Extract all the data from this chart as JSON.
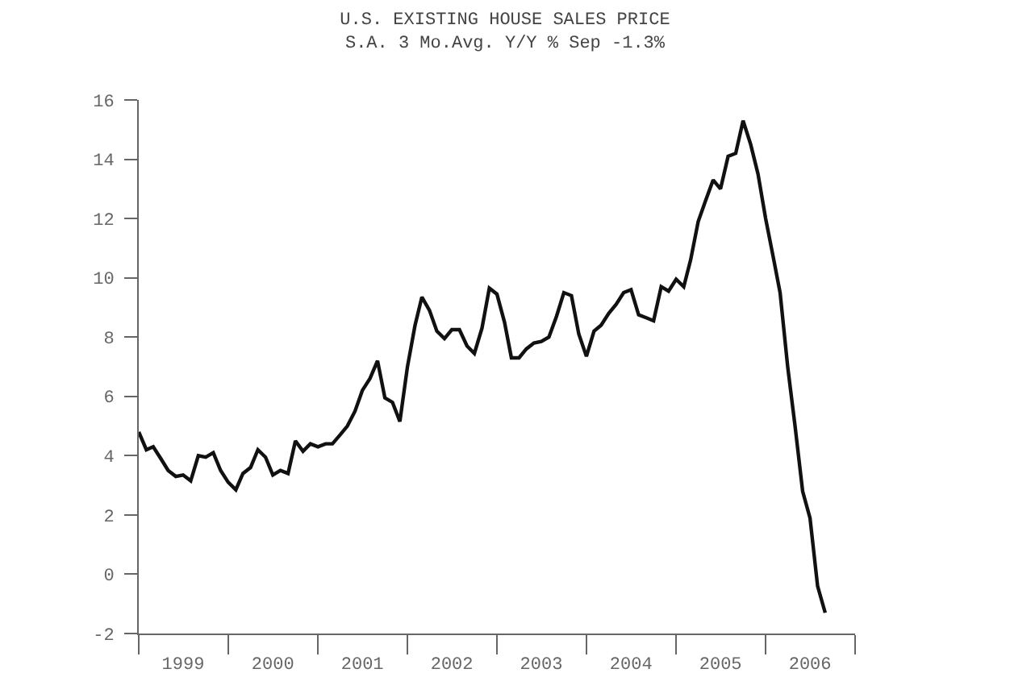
{
  "chart_data": {
    "type": "line",
    "title": "U.S. EXISTING HOUSE SALES PRICE",
    "subtitle": "S.A. 3 Mo.Avg. Y/Y % Sep -1.3%",
    "x": [
      "1999-01",
      "1999-02",
      "1999-03",
      "1999-04",
      "1999-05",
      "1999-06",
      "1999-07",
      "1999-08",
      "1999-09",
      "1999-10",
      "1999-11",
      "1999-12",
      "2000-01",
      "2000-02",
      "2000-03",
      "2000-04",
      "2000-05",
      "2000-06",
      "2000-07",
      "2000-08",
      "2000-09",
      "2000-10",
      "2000-11",
      "2000-12",
      "2001-01",
      "2001-02",
      "2001-03",
      "2001-04",
      "2001-05",
      "2001-06",
      "2001-07",
      "2001-08",
      "2001-09",
      "2001-10",
      "2001-11",
      "2001-12",
      "2002-01",
      "2002-02",
      "2002-03",
      "2002-04",
      "2002-05",
      "2002-06",
      "2002-07",
      "2002-08",
      "2002-09",
      "2002-10",
      "2002-11",
      "2002-12",
      "2003-01",
      "2003-02",
      "2003-03",
      "2003-04",
      "2003-05",
      "2003-06",
      "2003-07",
      "2003-08",
      "2003-09",
      "2003-10",
      "2003-11",
      "2003-12",
      "2004-01",
      "2004-02",
      "2004-03",
      "2004-04",
      "2004-05",
      "2004-06",
      "2004-07",
      "2004-08",
      "2004-09",
      "2004-10",
      "2004-11",
      "2004-12",
      "2005-01",
      "2005-02",
      "2005-03",
      "2005-04",
      "2005-05",
      "2005-06",
      "2005-07",
      "2005-08",
      "2005-09",
      "2005-10",
      "2005-11",
      "2005-12",
      "2006-01",
      "2006-02",
      "2006-03",
      "2006-04",
      "2006-05",
      "2006-06",
      "2006-07",
      "2006-08",
      "2006-09"
    ],
    "series": [
      {
        "color": "#111111",
        "values": [
          4.8,
          4.2,
          4.3,
          3.9,
          3.5,
          3.3,
          3.35,
          3.15,
          4.0,
          3.95,
          4.1,
          3.5,
          3.1,
          2.85,
          3.4,
          3.6,
          4.2,
          3.95,
          3.35,
          3.5,
          3.4,
          4.5,
          4.15,
          4.4,
          4.3,
          4.4,
          4.4,
          4.7,
          5.0,
          5.5,
          6.2,
          6.6,
          7.2,
          5.95,
          5.8,
          5.15,
          7.0,
          8.4,
          9.35,
          8.9,
          8.2,
          7.95,
          8.25,
          8.25,
          7.7,
          7.45,
          8.3,
          9.65,
          9.45,
          8.5,
          7.3,
          7.3,
          7.6,
          7.8,
          7.85,
          8.0,
          8.7,
          9.5,
          9.4,
          8.1,
          7.35,
          8.2,
          8.4,
          8.8,
          9.1,
          9.5,
          9.6,
          8.75,
          8.65,
          8.55,
          9.7,
          9.55,
          9.95,
          9.7,
          10.6,
          11.9,
          12.6,
          13.3,
          13.0,
          14.1,
          14.2,
          15.3,
          14.5,
          13.5,
          12.0,
          10.7,
          9.5,
          7.0,
          5.0,
          2.8,
          1.9,
          -0.4,
          -1.3
        ]
      }
    ],
    "xlim": [
      "1999-01",
      "2007-01"
    ],
    "xticks": [
      {
        "value": "1999-01",
        "label": null
      },
      {
        "value": "1999-07",
        "label": "1999"
      },
      {
        "value": "2000-01",
        "label": null
      },
      {
        "value": "2000-07",
        "label": "2000"
      },
      {
        "value": "2001-01",
        "label": null
      },
      {
        "value": "2001-07",
        "label": "2001"
      },
      {
        "value": "2002-01",
        "label": null
      },
      {
        "value": "2002-07",
        "label": "2002"
      },
      {
        "value": "2003-01",
        "label": null
      },
      {
        "value": "2003-07",
        "label": "2003"
      },
      {
        "value": "2004-01",
        "label": null
      },
      {
        "value": "2004-07",
        "label": "2004"
      },
      {
        "value": "2005-01",
        "label": null
      },
      {
        "value": "2005-07",
        "label": "2005"
      },
      {
        "value": "2006-01",
        "label": null
      },
      {
        "value": "2006-07",
        "label": "2006"
      },
      {
        "value": "2007-01",
        "label": null
      }
    ],
    "ylim": [
      -2,
      16
    ],
    "yticks": [
      -2,
      0,
      2,
      4,
      6,
      8,
      10,
      12,
      14,
      16
    ],
    "marker": "none",
    "line_style": "solid"
  }
}
